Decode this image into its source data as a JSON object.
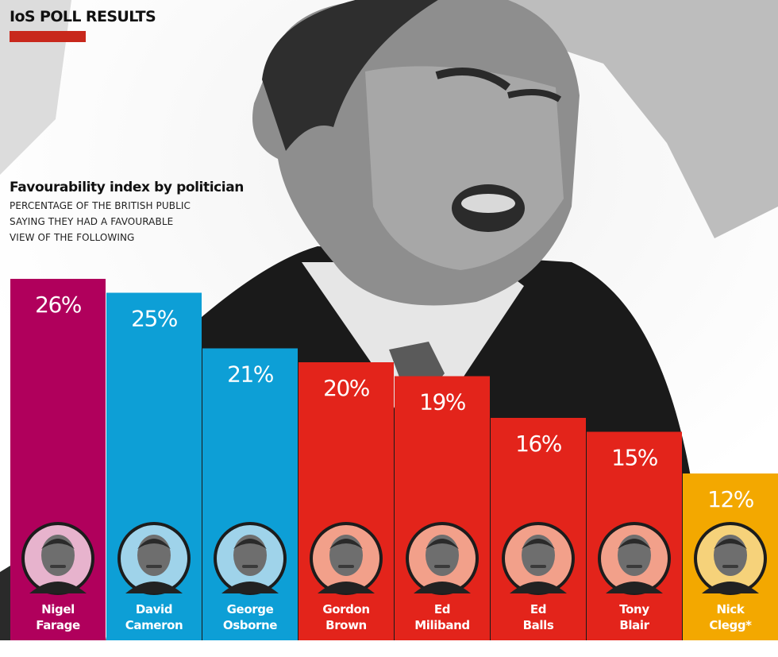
{
  "header": {
    "title": "IoS POLL RESULTS",
    "rule_color": "#c8281c"
  },
  "chart_data": {
    "type": "bar",
    "title": "Favourability index by politician",
    "subtitle_lines": [
      "PERCENTAGE OF THE BRITISH PUBLIC",
      "SAYING THEY HAD A FAVOURABLE",
      "VIEW OF THE FOLLOWING"
    ],
    "unit": "%",
    "categories": [
      "Nigel Farage",
      "David Cameron",
      "George Osborne",
      "Gordon Brown",
      "Ed Miliband",
      "Ed Balls",
      "Tony Blair",
      "Nick Clegg*"
    ],
    "values": [
      26,
      25,
      21,
      20,
      19,
      16,
      15,
      12
    ],
    "value_labels": [
      "26%",
      "25%",
      "21%",
      "20%",
      "19%",
      "16%",
      "15%",
      "12%"
    ],
    "label_lines": [
      [
        "Nigel",
        "Farage"
      ],
      [
        "David",
        "Cameron"
      ],
      [
        "George",
        "Osborne"
      ],
      [
        "Gordon",
        "Brown"
      ],
      [
        "Ed",
        "Miliband"
      ],
      [
        "Ed",
        "Balls"
      ],
      [
        "Tony",
        "Blair"
      ],
      [
        "Nick",
        "Clegg*"
      ]
    ],
    "bar_colors": [
      "#b0005c",
      "#0d9fd6",
      "#0d9fd6",
      "#e3241b",
      "#e3241b",
      "#e3241b",
      "#e3241b",
      "#f3a800"
    ],
    "portrait_tints": [
      "#e7b3cd",
      "#9fd3ea",
      "#9fd3ea",
      "#f2a08a",
      "#f2a08a",
      "#f2a08a",
      "#f2a08a",
      "#f6d27a"
    ],
    "legend": "none",
    "grid": false
  }
}
